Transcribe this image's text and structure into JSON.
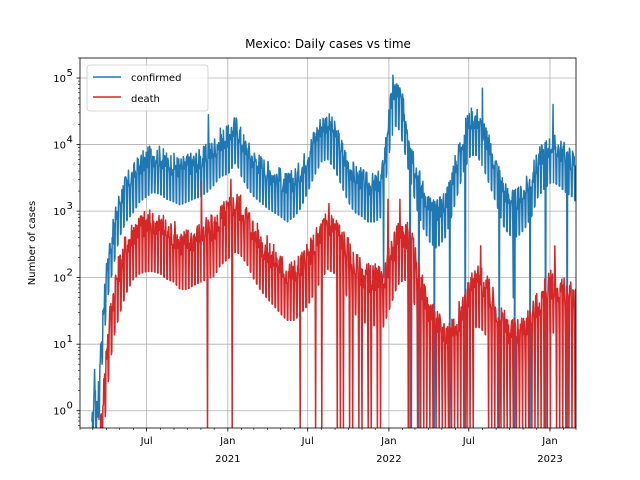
{
  "chart_data": {
    "type": "line",
    "title": "Mexico: Daily  cases vs time",
    "xlabel": "",
    "ylabel": "Number of cases",
    "yscale": "log",
    "ylim": [
      0.55,
      200000
    ],
    "xlim": [
      "2020-02-01",
      "2023-03-01"
    ],
    "grid": true,
    "legend_location": "upper left",
    "x_ticks": [
      {
        "date": "2020-07-01",
        "label": "Jul",
        "sublabel": ""
      },
      {
        "date": "2021-01-01",
        "label": "Jan",
        "sublabel": "2021"
      },
      {
        "date": "2021-07-01",
        "label": "Jul",
        "sublabel": ""
      },
      {
        "date": "2022-01-01",
        "label": "Jan",
        "sublabel": "2022"
      },
      {
        "date": "2022-07-01",
        "label": "Jul",
        "sublabel": ""
      },
      {
        "date": "2023-01-01",
        "label": "Jan",
        "sublabel": "2023"
      }
    ],
    "y_ticks": [
      {
        "value": 1,
        "base": "10",
        "exp": "0"
      },
      {
        "value": 10,
        "base": "10",
        "exp": "1"
      },
      {
        "value": 100,
        "base": "10",
        "exp": "2"
      },
      {
        "value": 1000,
        "base": "10",
        "exp": "3"
      },
      {
        "value": 10000,
        "base": "10",
        "exp": "4"
      },
      {
        "value": 100000,
        "base": "10",
        "exp": "5"
      }
    ],
    "series": [
      {
        "name": "confirmed",
        "color": "#1f77b4",
        "weekly_amplitude": 0.35,
        "points": [
          [
            "2020-02-28",
            0.5
          ],
          [
            "2020-03-05",
            3
          ],
          [
            "2020-03-12",
            1
          ],
          [
            "2020-03-19",
            10
          ],
          [
            "2020-03-26",
            40
          ],
          [
            "2020-04-02",
            150
          ],
          [
            "2020-04-09",
            300
          ],
          [
            "2020-04-16",
            500
          ],
          [
            "2020-04-23",
            900
          ],
          [
            "2020-05-01",
            1500
          ],
          [
            "2020-05-15",
            2500
          ],
          [
            "2020-06-01",
            3500
          ],
          [
            "2020-06-15",
            5000
          ],
          [
            "2020-07-01",
            6000
          ],
          [
            "2020-07-15",
            7000
          ],
          [
            "2020-08-01",
            6500
          ],
          [
            "2020-08-15",
            5500
          ],
          [
            "2020-09-01",
            5000
          ],
          [
            "2020-09-15",
            4500
          ],
          [
            "2020-10-01",
            5000
          ],
          [
            "2020-10-15",
            5500
          ],
          [
            "2020-11-01",
            6000
          ],
          [
            "2020-11-15",
            7000
          ],
          [
            "2020-12-01",
            9000
          ],
          [
            "2020-12-15",
            12000
          ],
          [
            "2021-01-01",
            13000
          ],
          [
            "2021-01-20",
            20000
          ],
          [
            "2021-02-01",
            12000
          ],
          [
            "2021-02-15",
            8000
          ],
          [
            "2021-03-01",
            6000
          ],
          [
            "2021-03-15",
            5000
          ],
          [
            "2021-04-01",
            4000
          ],
          [
            "2021-04-15",
            3500
          ],
          [
            "2021-05-01",
            3000
          ],
          [
            "2021-05-15",
            2500
          ],
          [
            "2021-06-01",
            3000
          ],
          [
            "2021-06-15",
            4000
          ],
          [
            "2021-07-01",
            7000
          ],
          [
            "2021-07-15",
            12000
          ],
          [
            "2021-08-01",
            20000
          ],
          [
            "2021-08-15",
            22000
          ],
          [
            "2021-09-01",
            15000
          ],
          [
            "2021-09-15",
            9000
          ],
          [
            "2021-10-01",
            5000
          ],
          [
            "2021-10-15",
            3500
          ],
          [
            "2021-11-01",
            3000
          ],
          [
            "2021-11-15",
            2500
          ],
          [
            "2021-12-01",
            2500
          ],
          [
            "2021-12-15",
            3000
          ],
          [
            "2021-12-28",
            15000
          ],
          [
            "2022-01-05",
            40000
          ],
          [
            "2022-01-15",
            70000
          ],
          [
            "2022-01-25",
            60000
          ],
          [
            "2022-02-05",
            30000
          ],
          [
            "2022-02-20",
            10000
          ],
          [
            "2022-03-05",
            4000
          ],
          [
            "2022-03-20",
            2000
          ],
          [
            "2022-04-05",
            1200
          ],
          [
            "2022-04-20",
            1000
          ],
          [
            "2022-05-10",
            1500
          ],
          [
            "2022-06-01",
            5000
          ],
          [
            "2022-06-20",
            15000
          ],
          [
            "2022-07-05",
            25000
          ],
          [
            "2022-07-20",
            25000
          ],
          [
            "2022-08-05",
            15000
          ],
          [
            "2022-08-20",
            8000
          ],
          [
            "2022-09-05",
            4000
          ],
          [
            "2022-09-20",
            2000
          ],
          [
            "2022-10-05",
            1500
          ],
          [
            "2022-10-20",
            1500
          ],
          [
            "2022-11-05",
            2000
          ],
          [
            "2022-11-20",
            3000
          ],
          [
            "2022-12-05",
            6000
          ],
          [
            "2022-12-20",
            8000
          ],
          [
            "2023-01-05",
            10000
          ],
          [
            "2023-01-20",
            9000
          ],
          [
            "2023-02-05",
            7000
          ],
          [
            "2023-02-20",
            6000
          ],
          [
            "2023-03-01",
            5000
          ]
        ],
        "spikes": [
          [
            "2020-11-18",
            28000
          ],
          [
            "2021-01-20",
            25000
          ],
          [
            "2021-12-20",
            100
          ],
          [
            "2022-01-10",
            110000
          ],
          [
            "2022-08-01",
            70000
          ],
          [
            "2022-10-10",
            50
          ],
          [
            "2023-01-08",
            40000
          ]
        ],
        "dropouts": [
          [
            "2020-03-08",
            0.5
          ],
          [
            "2022-02-18",
            0.5
          ],
          [
            "2022-03-10",
            0.5
          ],
          [
            "2022-04-14",
            0.5
          ],
          [
            "2022-05-19",
            0.5
          ],
          [
            "2022-06-23",
            0.5
          ],
          [
            "2022-09-08",
            0.5
          ],
          [
            "2022-10-13",
            0.5
          ],
          [
            "2022-11-17",
            0.5
          ],
          [
            "2022-12-22",
            0.5
          ],
          [
            "2023-02-09",
            0.5
          ]
        ]
      },
      {
        "name": "death",
        "color": "#d62728",
        "weekly_amplitude": 0.45,
        "points": [
          [
            "2020-03-18",
            0.5
          ],
          [
            "2020-03-22",
            1
          ],
          [
            "2020-04-01",
            8
          ],
          [
            "2020-04-10",
            30
          ],
          [
            "2020-04-20",
            80
          ],
          [
            "2020-05-01",
            150
          ],
          [
            "2020-05-15",
            300
          ],
          [
            "2020-06-01",
            500
          ],
          [
            "2020-06-15",
            600
          ],
          [
            "2020-07-01",
            650
          ],
          [
            "2020-07-15",
            650
          ],
          [
            "2020-08-01",
            600
          ],
          [
            "2020-08-15",
            500
          ],
          [
            "2020-09-01",
            450
          ],
          [
            "2020-09-15",
            350
          ],
          [
            "2020-10-01",
            350
          ],
          [
            "2020-10-15",
            400
          ],
          [
            "2020-11-01",
            450
          ],
          [
            "2020-11-15",
            500
          ],
          [
            "2020-12-01",
            550
          ],
          [
            "2020-12-15",
            800
          ],
          [
            "2021-01-01",
            1000
          ],
          [
            "2021-01-20",
            1300
          ],
          [
            "2021-02-01",
            1100
          ],
          [
            "2021-02-15",
            800
          ],
          [
            "2021-03-01",
            500
          ],
          [
            "2021-03-15",
            350
          ],
          [
            "2021-04-01",
            250
          ],
          [
            "2021-04-15",
            200
          ],
          [
            "2021-05-01",
            150
          ],
          [
            "2021-05-15",
            120
          ],
          [
            "2021-06-01",
            120
          ],
          [
            "2021-06-15",
            150
          ],
          [
            "2021-07-01",
            200
          ],
          [
            "2021-07-15",
            300
          ],
          [
            "2021-08-01",
            500
          ],
          [
            "2021-08-15",
            700
          ],
          [
            "2021-09-01",
            600
          ],
          [
            "2021-09-15",
            400
          ],
          [
            "2021-10-01",
            250
          ],
          [
            "2021-10-15",
            150
          ],
          [
            "2021-11-01",
            120
          ],
          [
            "2021-11-15",
            100
          ],
          [
            "2021-12-01",
            100
          ],
          [
            "2021-12-15",
            80
          ],
          [
            "2022-01-05",
            200
          ],
          [
            "2022-01-20",
            400
          ],
          [
            "2022-02-05",
            500
          ],
          [
            "2022-02-20",
            350
          ],
          [
            "2022-03-05",
            150
          ],
          [
            "2022-03-20",
            60
          ],
          [
            "2022-04-05",
            30
          ],
          [
            "2022-04-20",
            20
          ],
          [
            "2022-05-10",
            15
          ],
          [
            "2022-06-01",
            20
          ],
          [
            "2022-06-20",
            40
          ],
          [
            "2022-07-05",
            70
          ],
          [
            "2022-07-20",
            100
          ],
          [
            "2022-08-05",
            80
          ],
          [
            "2022-08-20",
            50
          ],
          [
            "2022-09-05",
            30
          ],
          [
            "2022-09-20",
            20
          ],
          [
            "2022-10-05",
            15
          ],
          [
            "2022-10-20",
            15
          ],
          [
            "2022-11-05",
            20
          ],
          [
            "2022-11-20",
            25
          ],
          [
            "2022-12-05",
            40
          ],
          [
            "2022-12-20",
            60
          ],
          [
            "2023-01-05",
            80
          ],
          [
            "2023-01-20",
            70
          ],
          [
            "2023-02-05",
            60
          ],
          [
            "2023-02-20",
            50
          ],
          [
            "2023-03-01",
            40
          ]
        ],
        "spikes": [
          [
            "2020-11-02",
            2800
          ],
          [
            "2021-01-08",
            3000
          ],
          [
            "2021-08-18",
            1300
          ],
          [
            "2021-12-30",
            1500
          ],
          [
            "2022-01-26",
            1500
          ],
          [
            "2022-07-28",
            300
          ],
          [
            "2023-01-12",
            300
          ]
        ],
        "dropouts": [
          [
            "2020-11-16",
            0.5
          ],
          [
            "2021-01-11",
            0.5
          ],
          [
            "2021-06-14",
            0.5
          ],
          [
            "2021-07-19",
            0.5
          ],
          [
            "2021-08-02",
            0.5
          ],
          [
            "2021-09-06",
            0.5
          ],
          [
            "2021-09-13",
            0.5
          ],
          [
            "2021-09-20",
            0.5
          ],
          [
            "2021-10-04",
            0.5
          ],
          [
            "2021-10-11",
            0.5
          ],
          [
            "2021-10-25",
            0.5
          ],
          [
            "2021-11-01",
            0.5
          ],
          [
            "2021-11-15",
            0.5
          ],
          [
            "2021-11-22",
            0.5
          ],
          [
            "2021-12-06",
            0.5
          ],
          [
            "2021-12-13",
            0.5
          ],
          [
            "2022-02-14",
            0.5
          ],
          [
            "2022-02-21",
            0.5
          ],
          [
            "2022-03-07",
            0.5
          ],
          [
            "2022-03-14",
            0.5
          ],
          [
            "2022-03-21",
            0.5
          ],
          [
            "2022-03-28",
            0.5
          ],
          [
            "2022-04-04",
            0.5
          ],
          [
            "2022-04-11",
            0.5
          ],
          [
            "2022-04-18",
            0.5
          ],
          [
            "2022-04-25",
            0.5
          ],
          [
            "2022-05-02",
            0.5
          ],
          [
            "2022-05-09",
            0.5
          ],
          [
            "2022-05-16",
            0.5
          ],
          [
            "2022-05-23",
            0.5
          ],
          [
            "2022-05-30",
            0.5
          ],
          [
            "2022-06-06",
            0.5
          ],
          [
            "2022-06-13",
            0.5
          ],
          [
            "2022-06-20",
            0.5
          ],
          [
            "2022-06-27",
            0.5
          ],
          [
            "2022-07-04",
            0.5
          ],
          [
            "2022-07-11",
            0.5
          ],
          [
            "2022-08-15",
            0.5
          ],
          [
            "2022-08-22",
            0.5
          ],
          [
            "2022-08-29",
            0.5
          ],
          [
            "2022-09-05",
            0.5
          ],
          [
            "2022-09-12",
            0.5
          ],
          [
            "2022-09-19",
            0.5
          ],
          [
            "2022-09-26",
            0.5
          ],
          [
            "2022-10-03",
            0.5
          ],
          [
            "2022-10-10",
            0.5
          ],
          [
            "2022-10-17",
            0.5
          ],
          [
            "2022-10-24",
            0.5
          ],
          [
            "2022-10-31",
            0.5
          ],
          [
            "2022-11-07",
            0.5
          ],
          [
            "2022-11-14",
            0.5
          ],
          [
            "2022-11-21",
            0.5
          ],
          [
            "2022-11-28",
            0.5
          ],
          [
            "2022-12-05",
            0.5
          ],
          [
            "2022-12-12",
            0.5
          ],
          [
            "2022-12-19",
            0.5
          ],
          [
            "2022-12-26",
            0.5
          ],
          [
            "2023-01-02",
            0.5
          ],
          [
            "2023-01-16",
            0.5
          ],
          [
            "2023-01-23",
            0.5
          ],
          [
            "2023-01-30",
            0.5
          ],
          [
            "2023-02-06",
            0.5
          ],
          [
            "2023-02-13",
            0.5
          ],
          [
            "2023-02-20",
            0.5
          ],
          [
            "2023-02-27",
            0.5
          ]
        ]
      }
    ]
  }
}
